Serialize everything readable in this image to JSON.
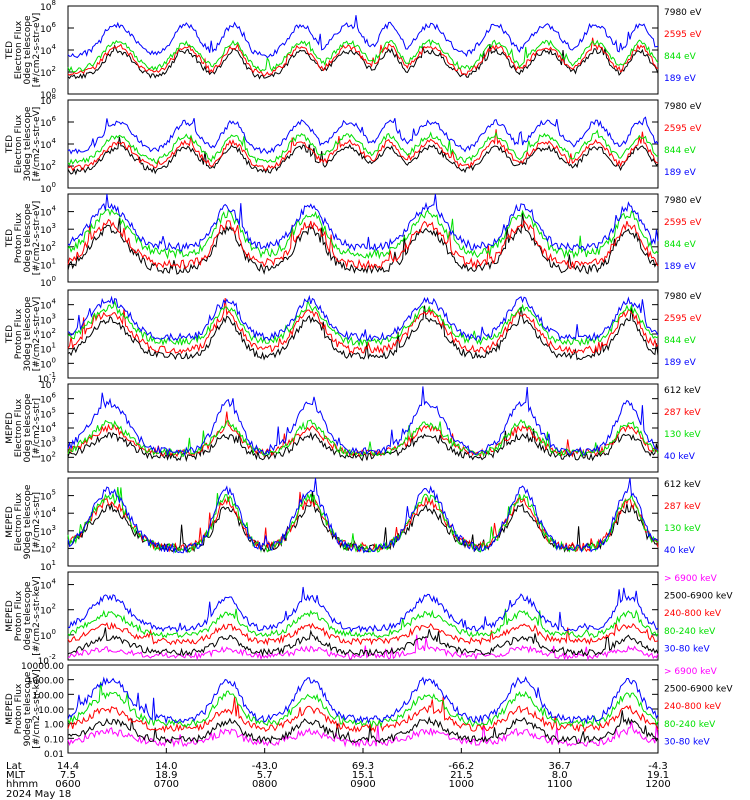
{
  "colors": {
    "black": "#000000",
    "red": "#ff0000",
    "green": "#00e000",
    "blue": "#0000ff",
    "magenta": "#ff00ff"
  },
  "chart_data": [
    {
      "type": "line",
      "instrument": "TED",
      "ylabel_lines": [
        "TED",
        "Electron Flux",
        "0deg telescope",
        "[#/cm2-s-str-eV]"
      ],
      "ylim": [
        1,
        100000000
      ],
      "yscale": "log",
      "yticks": [
        {
          "value": 1,
          "label": "10",
          "exp": "0"
        },
        {
          "value": 100,
          "label": "10",
          "exp": "2"
        },
        {
          "value": 10000,
          "label": "10",
          "exp": "4"
        },
        {
          "value": 1000000,
          "label": "10",
          "exp": "6"
        },
        {
          "value": 100000000,
          "label": "10",
          "exp": "8"
        }
      ],
      "series": [
        {
          "name": "7980 eV",
          "color": "#000000",
          "base": 30,
          "peak": 8000
        },
        {
          "name": "2595 eV",
          "color": "#ff0000",
          "base": 60,
          "peak": 20000
        },
        {
          "name": "844 eV",
          "color": "#00e000",
          "base": 150,
          "peak": 50000
        },
        {
          "name": "189 eV",
          "color": "#0000ff",
          "base": 3000,
          "peak": 2000000
        }
      ]
    },
    {
      "type": "line",
      "instrument": "TED",
      "ylabel_lines": [
        "TED",
        "Electron Flux",
        "30deg telescope",
        "[#/cm2-s-str-eV]"
      ],
      "ylim": [
        1,
        100000000
      ],
      "yscale": "log",
      "yticks": [
        {
          "value": 1,
          "label": "10",
          "exp": "0"
        },
        {
          "value": 100,
          "label": "10",
          "exp": "2"
        },
        {
          "value": 10000,
          "label": "10",
          "exp": "4"
        },
        {
          "value": 1000000,
          "label": "10",
          "exp": "6"
        },
        {
          "value": 100000000,
          "label": "10",
          "exp": "8"
        }
      ],
      "series": [
        {
          "name": "7980 eV",
          "color": "#000000",
          "base": 30,
          "peak": 5000
        },
        {
          "name": "2595 eV",
          "color": "#ff0000",
          "base": 60,
          "peak": 15000
        },
        {
          "name": "844 eV",
          "color": "#00e000",
          "base": 200,
          "peak": 60000
        },
        {
          "name": "189 eV",
          "color": "#0000ff",
          "base": 2000,
          "peak": 1000000
        }
      ]
    },
    {
      "type": "line",
      "instrument": "TED",
      "ylabel_lines": [
        "TED",
        "Proton Flux",
        "0deg telescope",
        "[#/cm2-s-str-eV]"
      ],
      "ylim": [
        1,
        100000
      ],
      "yscale": "log",
      "yticks": [
        {
          "value": 1,
          "label": "10",
          "exp": "0"
        },
        {
          "value": 10,
          "label": "10",
          "exp": "1"
        },
        {
          "value": 100,
          "label": "10",
          "exp": "2"
        },
        {
          "value": 1000,
          "label": "10",
          "exp": "3"
        },
        {
          "value": 10000,
          "label": "10",
          "exp": "4"
        }
      ],
      "series": [
        {
          "name": "7980 eV",
          "color": "#000000",
          "base": 5,
          "peak": 1000
        },
        {
          "name": "2595 eV",
          "color": "#ff0000",
          "base": 10,
          "peak": 2000
        },
        {
          "name": "844 eV",
          "color": "#00e000",
          "base": 40,
          "peak": 8000
        },
        {
          "name": "189 eV",
          "color": "#0000ff",
          "base": 100,
          "peak": 20000
        }
      ]
    },
    {
      "type": "line",
      "instrument": "TED",
      "ylabel_lines": [
        "TED",
        "Proton Flux",
        "30deg telescope",
        "[#/cm2-s-str-eV]"
      ],
      "ylim": [
        0.1,
        100000
      ],
      "yscale": "log",
      "yticks": [
        {
          "value": 0.1,
          "label": "10",
          "exp": "-1"
        },
        {
          "value": 1,
          "label": "10",
          "exp": "0"
        },
        {
          "value": 10,
          "label": "10",
          "exp": "1"
        },
        {
          "value": 100,
          "label": "10",
          "exp": "2"
        },
        {
          "value": 1000,
          "label": "10",
          "exp": "3"
        },
        {
          "value": 10000,
          "label": "10",
          "exp": "4"
        }
      ],
      "series": [
        {
          "name": "7980 eV",
          "color": "#000000",
          "base": 3,
          "peak": 1000
        },
        {
          "name": "2595 eV",
          "color": "#ff0000",
          "base": 8,
          "peak": 3000
        },
        {
          "name": "844 eV",
          "color": "#00e000",
          "base": 30,
          "peak": 6000
        },
        {
          "name": "189 eV",
          "color": "#0000ff",
          "base": 60,
          "peak": 20000
        }
      ]
    },
    {
      "type": "line",
      "instrument": "MEPED",
      "ylabel_lines": [
        "MEPED",
        "Electron Flux",
        "0deg telescope",
        "[#/cm2-s-str]"
      ],
      "ylim": [
        10,
        10000000
      ],
      "yscale": "log",
      "yticks": [
        {
          "value": 100,
          "label": "10",
          "exp": "2"
        },
        {
          "value": 1000,
          "label": "10",
          "exp": "3"
        },
        {
          "value": 10000,
          "label": "10",
          "exp": "4"
        },
        {
          "value": 100000,
          "label": "10",
          "exp": "5"
        },
        {
          "value": 1000000,
          "label": "10",
          "exp": "6"
        },
        {
          "value": 10000000,
          "label": "10",
          "exp": "7"
        }
      ],
      "series": [
        {
          "name": "612 keV",
          "color": "#000000",
          "base": 110,
          "peak": 3000
        },
        {
          "name": "287 keV",
          "color": "#ff0000",
          "base": 200,
          "peak": 10000
        },
        {
          "name": "130 keV",
          "color": "#00e000",
          "base": 200,
          "peak": 20000
        },
        {
          "name": "40 keV",
          "color": "#0000ff",
          "base": 250,
          "peak": 500000
        }
      ]
    },
    {
      "type": "line",
      "instrument": "MEPED",
      "ylabel_lines": [
        "MEPED",
        "Electron Flux",
        "90deg telescope",
        "[#/cm2-s-str]"
      ],
      "ylim": [
        10,
        1000000
      ],
      "yscale": "log",
      "yticks": [
        {
          "value": 10,
          "label": "10",
          "exp": "1"
        },
        {
          "value": 100,
          "label": "10",
          "exp": "2"
        },
        {
          "value": 1000,
          "label": "10",
          "exp": "3"
        },
        {
          "value": 10000,
          "label": "10",
          "exp": "4"
        },
        {
          "value": 100000,
          "label": "10",
          "exp": "5"
        }
      ],
      "series": [
        {
          "name": "612 keV",
          "color": "#000000",
          "base": 110,
          "peak": 20000
        },
        {
          "name": "287 keV",
          "color": "#ff0000",
          "base": 120,
          "peak": 50000
        },
        {
          "name": "130 keV",
          "color": "#00e000",
          "base": 100,
          "peak": 80000
        },
        {
          "name": "40 keV",
          "color": "#0000ff",
          "base": 100,
          "peak": 200000
        }
      ]
    },
    {
      "type": "line",
      "instrument": "MEPED",
      "ylabel_lines": [
        "MEPED",
        "Proton Flux",
        "0deg telescope",
        "[#/cm2-s-str-keV]"
      ],
      "ylim": [
        0.01,
        100000
      ],
      "yscale": "log",
      "yticks": [
        {
          "value": 0.01,
          "label": "10",
          "exp": "-2"
        },
        {
          "value": 1,
          "label": "10",
          "exp": "0"
        },
        {
          "value": 100,
          "label": "10",
          "exp": "2"
        },
        {
          "value": 10000,
          "label": "10",
          "exp": "4"
        }
      ],
      "series": [
        {
          "name": "> 6900 keV",
          "color": "#ff00ff",
          "base": 0.02,
          "peak": 0.08
        },
        {
          "name": "2500-6900 keV",
          "color": "#000000",
          "base": 0.04,
          "peak": 0.6
        },
        {
          "name": "240-800 keV",
          "color": "#ff0000",
          "base": 0.3,
          "peak": 5
        },
        {
          "name": "80-240 keV",
          "color": "#00e000",
          "base": 1,
          "peak": 50
        },
        {
          "name": "30-80 keV",
          "color": "#0000ff",
          "base": 3,
          "peak": 1000
        }
      ]
    },
    {
      "type": "line",
      "instrument": "MEPED",
      "ylabel_lines": [
        "MEPED",
        "Proton Flux",
        "90deg telescope",
        "[#/cm2-s-str-keV]"
      ],
      "ylim": [
        0.01,
        10000
      ],
      "yscale": "log",
      "yticks": [
        {
          "value": 0.01,
          "label": "0.01"
        },
        {
          "value": 0.1,
          "label": "0.10"
        },
        {
          "value": 1,
          "label": "1.00"
        },
        {
          "value": 10,
          "label": "10.00"
        },
        {
          "value": 100,
          "label": "100.00"
        },
        {
          "value": 1000,
          "label": "1000.00"
        },
        {
          "value": 10000,
          "label": "10000.00"
        }
      ],
      "series": [
        {
          "name": "> 6900 keV",
          "color": "#ff00ff",
          "base": 0.05,
          "peak": 0.3
        },
        {
          "name": "2500-6900 keV",
          "color": "#000000",
          "base": 0.08,
          "peak": 1.5
        },
        {
          "name": "240-800 keV",
          "color": "#ff0000",
          "base": 0.5,
          "peak": 10
        },
        {
          "name": "80-240 keV",
          "color": "#00e000",
          "base": 1,
          "peak": 100
        },
        {
          "name": "30-80 keV",
          "color": "#0000ff",
          "base": 2,
          "peak": 1000
        }
      ]
    }
  ],
  "x_axis": {
    "rows": [
      {
        "name": "Lat",
        "values": [
          "14.4",
          "14.0",
          "-43.0",
          "69.3",
          "-66.2",
          "36.7",
          "-4.3"
        ]
      },
      {
        "name": "MLT",
        "values": [
          "7.5",
          "18.9",
          "5.7",
          "15.1",
          "21.5",
          "8.0",
          "19.1"
        ]
      },
      {
        "name": "hhmm",
        "values": [
          "0600",
          "0700",
          "0800",
          "0900",
          "1000",
          "1100",
          "1200"
        ]
      }
    ],
    "date": "2024 May 18"
  }
}
